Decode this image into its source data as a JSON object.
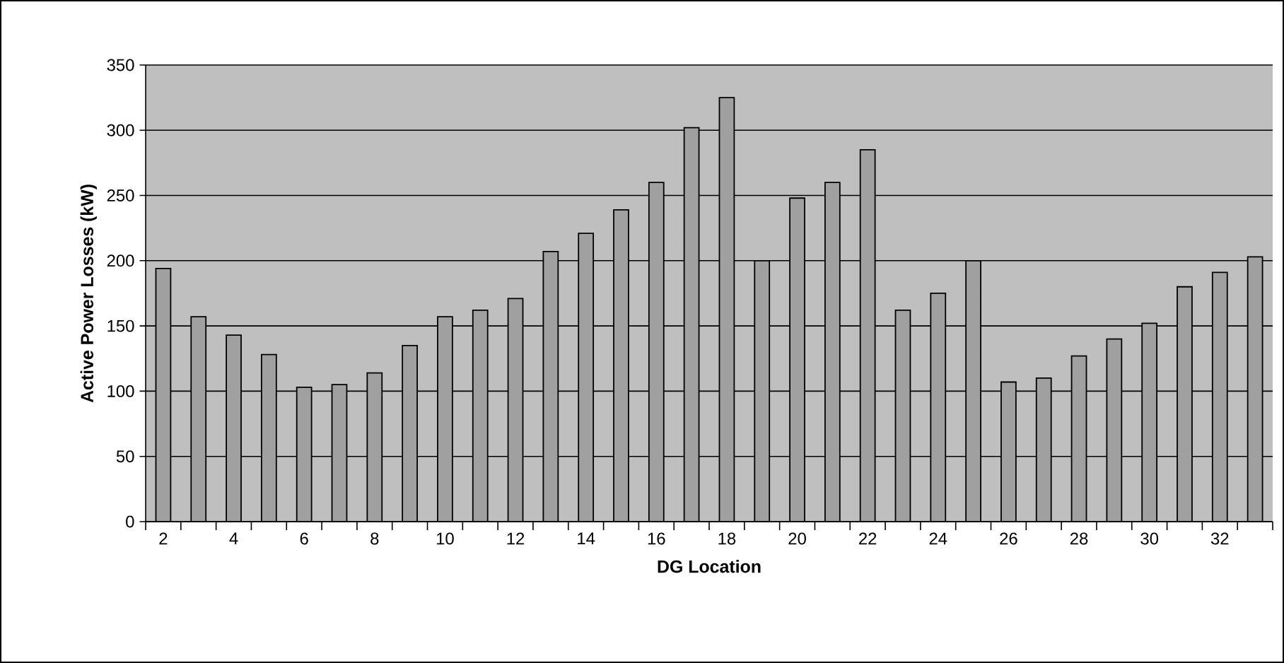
{
  "chart_data": {
    "type": "bar",
    "xlabel": "DG Location",
    "ylabel": "Active Power Losses (kW)",
    "categories": [
      "2",
      null,
      "4",
      null,
      "6",
      null,
      "8",
      null,
      "10",
      null,
      "12",
      null,
      "14",
      null,
      "16",
      null,
      "18",
      null,
      "20",
      null,
      "22",
      null,
      "24",
      null,
      "26",
      null,
      "28",
      null,
      "30",
      null,
      "32",
      null
    ],
    "values": [
      194,
      157,
      143,
      128,
      103,
      105,
      114,
      135,
      157,
      162,
      171,
      207,
      221,
      239,
      260,
      302,
      325,
      200,
      248,
      260,
      285,
      162,
      175,
      200,
      107,
      110,
      127,
      140,
      152,
      180,
      191,
      203
    ],
    "color": "#a0a0a0",
    "ylim": [
      0,
      350
    ],
    "yticks": [
      0,
      50,
      100,
      150,
      200,
      250,
      300,
      350
    ],
    "grid": "y"
  }
}
